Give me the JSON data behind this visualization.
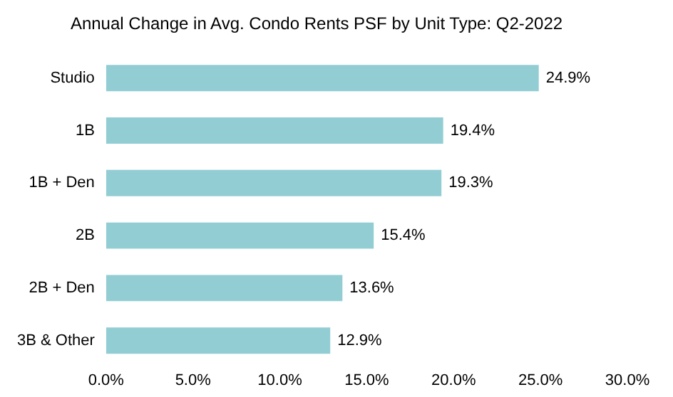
{
  "chart_data": {
    "type": "bar",
    "orientation": "horizontal",
    "title": "Annual Change in Avg. Condo Rents PSF by Unit Type: Q2-2022",
    "categories": [
      "Studio",
      "1B",
      "1B + Den",
      "2B",
      "2B + Den",
      "3B & Other"
    ],
    "values": [
      24.9,
      19.4,
      19.3,
      15.4,
      13.6,
      12.9
    ],
    "value_labels": [
      "24.9%",
      "19.4%",
      "19.3%",
      "15.4%",
      "13.6%",
      "12.9%"
    ],
    "color": "#92cdd4",
    "xlim": [
      0,
      30
    ],
    "xticks": [
      {
        "value": 0,
        "label": "0.0%"
      },
      {
        "value": 5,
        "label": "5.0%"
      },
      {
        "value": 10,
        "label": "10.0%"
      },
      {
        "value": 15,
        "label": "15.0%"
      },
      {
        "value": 20,
        "label": "20.0%"
      },
      {
        "value": 25,
        "label": "25.0%"
      },
      {
        "value": 30,
        "label": "30.0%"
      }
    ],
    "grid": false,
    "legend": false
  }
}
